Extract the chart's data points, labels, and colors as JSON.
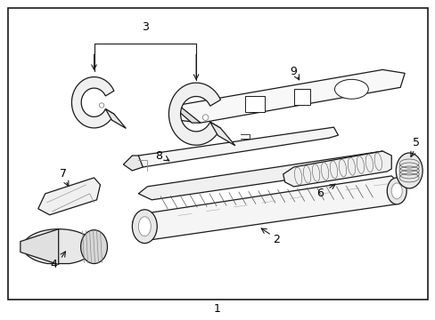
{
  "background_color": "#ffffff",
  "border_color": "#000000",
  "text_color": "#000000",
  "fig_width": 4.89,
  "fig_height": 3.6,
  "dpi": 100,
  "font_size": 9
}
